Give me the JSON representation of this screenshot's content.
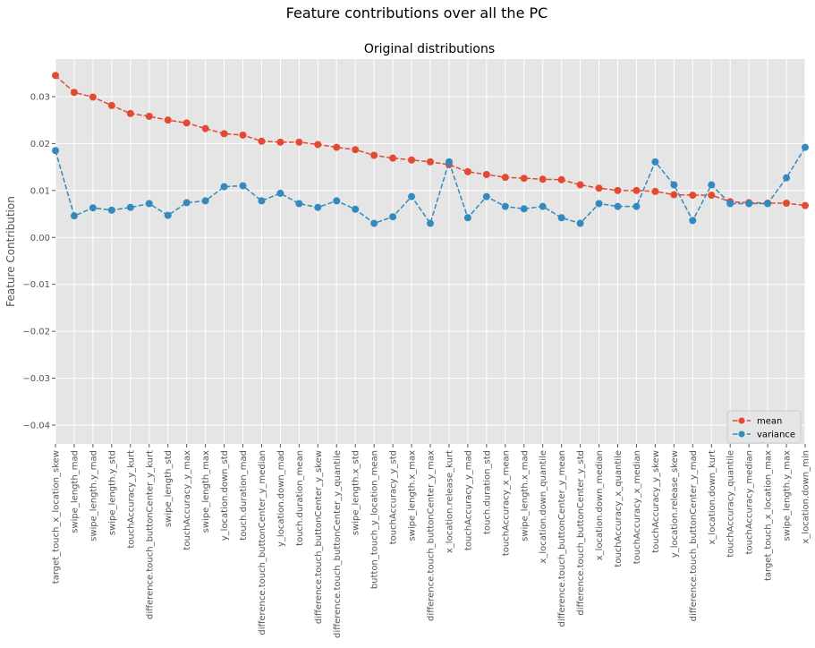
{
  "figure": {
    "suptitle": "Feature contributions over all the PC"
  },
  "chart_data": {
    "type": "line",
    "title": "Original distributions",
    "xlabel": "",
    "ylabel": "Feature Contribution",
    "ylim": [
      -0.044,
      0.038
    ],
    "yticks": [
      -0.04,
      -0.03,
      -0.02,
      -0.01,
      0.0,
      0.01,
      0.02,
      0.03
    ],
    "ytick_labels": [
      "−0.04",
      "−0.03",
      "−0.02",
      "−0.01",
      "0.00",
      "0.01",
      "0.02",
      "0.03"
    ],
    "grid": true,
    "legend_position": "lower-right",
    "categories": [
      "target_touch_x_location_skew",
      "swipe_length_mad",
      "swipe_length.y_mad",
      "swipe_length.y_std",
      "touchAccuracy_y_kurt",
      "difference.touch_buttonCenter_y_kurt",
      "swipe_length_std",
      "touchAccuracy_y_max",
      "swipe_length_max",
      "y_location.down_std",
      "touch.duration_mad",
      "difference.touch_buttonCenter_y_median",
      "y_location.down_mad",
      "touch.duration_mean",
      "difference.touch_buttonCenter_y_skew",
      "difference.touch_buttonCenter_y_quantile",
      "swipe_length.x_std",
      "button_touch_y_location_mean",
      "touchAccuracy_y_std",
      "swipe_length.x_max",
      "difference.touch_buttonCenter_y_max",
      "x_location.release_kurt",
      "touchAccuracy_y_mad",
      "touch.duration_std",
      "touchAccuracy_x_mean",
      "swipe_length.x_mad",
      "x_location.down_quantile",
      "difference.touch_buttonCenter_y_mean",
      "difference.touch_buttonCenter_y_std",
      "x_location.down_median",
      "touchAccuracy_x_quantile",
      "touchAccuracy_x_median",
      "touchAccuracy_y_skew",
      "y_location.release_skew",
      "difference.touch_buttonCenter_y_mad",
      "x_location.down_kurt",
      "touchAccuracy_quantile",
      "touchAccuracy_median",
      "target_touch_x_location_max",
      "swipe_length.y_max",
      "x_location.down_min"
    ],
    "series": [
      {
        "name": "mean",
        "color": "#e24a33",
        "values": [
          0.0345,
          0.0309,
          0.0299,
          0.0281,
          0.0264,
          0.0258,
          0.025,
          0.0244,
          0.0232,
          0.0221,
          0.0218,
          0.0205,
          0.0203,
          0.0203,
          0.0198,
          0.0192,
          0.0187,
          0.0175,
          0.0169,
          0.0165,
          0.0161,
          0.0155,
          0.014,
          0.0134,
          0.0128,
          0.0126,
          0.0124,
          0.0123,
          0.0112,
          0.0105,
          0.01,
          0.01,
          0.0098,
          0.0091,
          0.009,
          0.009,
          0.0076,
          0.0074,
          0.0073,
          0.0073,
          0.0068
        ]
      },
      {
        "name": "variance",
        "color": "#348abd",
        "values": [
          0.0185,
          0.0046,
          0.0063,
          0.0058,
          0.0064,
          0.0072,
          0.0047,
          0.0074,
          0.0078,
          0.0108,
          0.011,
          0.0078,
          0.0094,
          0.0072,
          0.0064,
          0.0078,
          0.006,
          0.003,
          0.0044,
          0.0087,
          0.003,
          0.0161,
          0.0042,
          0.0087,
          0.0066,
          0.0061,
          0.0066,
          0.0042,
          0.003,
          0.0072,
          0.0066,
          0.0066,
          0.0161,
          0.0112,
          0.0036,
          0.0112,
          0.0072,
          0.0072,
          0.0072,
          0.0127,
          0.0192
        ]
      }
    ]
  }
}
